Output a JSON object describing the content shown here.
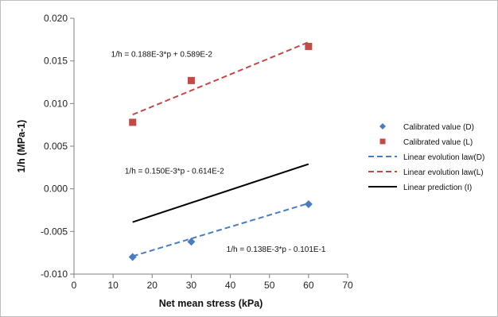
{
  "chart_data": {
    "type": "scatter",
    "title": "",
    "xlabel": "Net mean stress  (kPa)",
    "ylabel": "1/h  (MPa-1)",
    "xlim": [
      0,
      70
    ],
    "ylim": [
      -0.01,
      0.02
    ],
    "grid": false,
    "legend_position": "right",
    "x_tick_labels": [
      "0",
      "10",
      "20",
      "30",
      "40",
      "50",
      "60",
      "70"
    ],
    "y_tick_labels": [
      "-0.010",
      "-0.005",
      "0.000",
      "0.005",
      "0.010",
      "0.015",
      "0.020"
    ],
    "series": [
      {
        "name": "Calibrated value (D)",
        "kind": "marker",
        "marker": "diamond",
        "color": "#4a7ebb",
        "points": [
          [
            15,
            -0.008
          ],
          [
            30,
            -0.0062
          ],
          [
            60,
            -0.0018
          ]
        ]
      },
      {
        "name": "Calibrated value (L)",
        "kind": "marker",
        "marker": "square",
        "color": "#be4b48",
        "points": [
          [
            15,
            0.0078
          ],
          [
            30,
            0.0127
          ],
          [
            60,
            0.0167
          ]
        ]
      },
      {
        "name": "Linear evolution law(D)",
        "kind": "line",
        "dash": "dashed",
        "color": "#4a7ebb",
        "points": [
          [
            15,
            -0.0079
          ],
          [
            60,
            -0.0017
          ]
        ]
      },
      {
        "name": "Linear evolution law(L)",
        "kind": "line",
        "dash": "dashed",
        "color": "#be4b48",
        "points": [
          [
            15,
            0.0087
          ],
          [
            60,
            0.0172
          ]
        ]
      },
      {
        "name": "Linear prediction (I)",
        "kind": "line",
        "dash": "solid",
        "color": "#000000",
        "points": [
          [
            15,
            -0.0039
          ],
          [
            60,
            0.0029
          ]
        ]
      }
    ],
    "annotations": [
      {
        "text": "1/h = 0.188E-3*p + 0.589E-2",
        "x": 9.5,
        "y": 0.0155
      },
      {
        "text": "1/h = 0.150E-3*p - 0.614E-2",
        "x": 13,
        "y": 0.0018
      },
      {
        "text": "1/h = 0.138E-3*p - 0.101E-1",
        "x": 39,
        "y": -0.0074
      }
    ]
  }
}
